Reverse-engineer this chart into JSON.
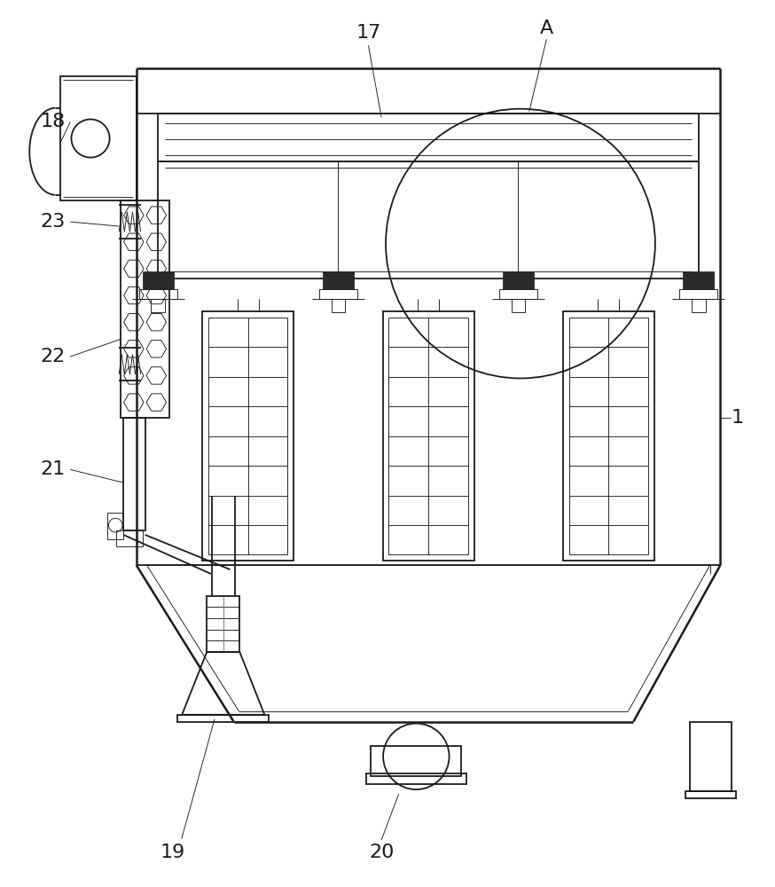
{
  "bg": "#ffffff",
  "lc": "#1a1a1a",
  "lw": 1.3,
  "tlw": 0.65,
  "thw": 1.8,
  "fw": 8.74,
  "fh": 10.0
}
